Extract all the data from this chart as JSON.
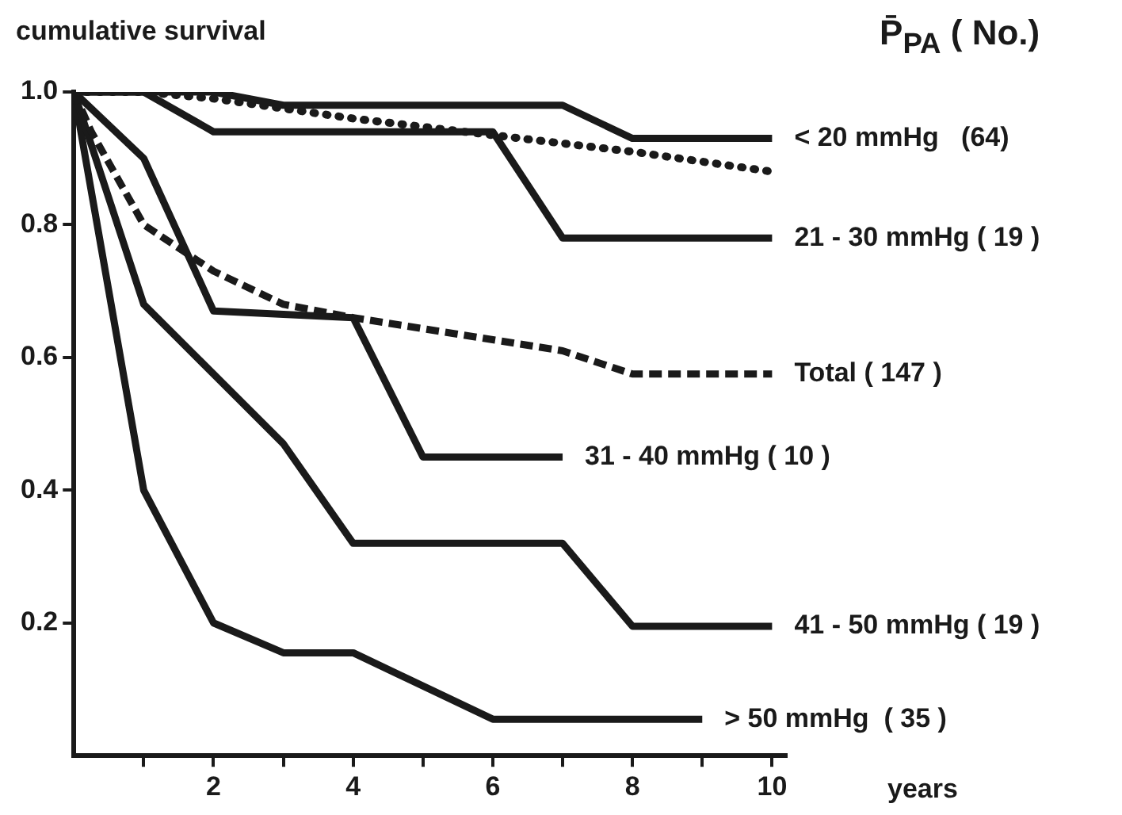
{
  "chart_data": {
    "type": "line",
    "ylabel": "cumulative survival",
    "xlabel": "years",
    "legend_title": "P̄$_{PA}$  ( No.)",
    "xlim": [
      0,
      10.2
    ],
    "ylim": [
      0,
      1.0
    ],
    "xticks": [
      {
        "value": 1,
        "label": null
      },
      2,
      {
        "value": 3,
        "label": null
      },
      4,
      {
        "value": 5,
        "label": null
      },
      6,
      {
        "value": 7,
        "label": null
      },
      8,
      {
        "value": 9,
        "label": null
      },
      10
    ],
    "yticks": [
      {
        "value": 0.2,
        "label": "0.2"
      },
      {
        "value": 0.4,
        "label": "0.4"
      },
      {
        "value": 0.6,
        "label": "0.6"
      },
      {
        "value": 0.8,
        "label": "0.8"
      },
      {
        "value": 1,
        "label": "1.0"
      }
    ],
    "grid": false,
    "legend": false,
    "marker": "none",
    "line_style": "solid",
    "series": [
      {
        "name": "< 20 mmHg   (64)",
        "color": "#1a1a1a",
        "x": [
          0,
          2,
          3,
          7,
          8,
          10
        ],
        "values": [
          1,
          1,
          0.98,
          0.98,
          0.93,
          0.93
        ]
      },
      {
        "color": "#1a1a1a",
        "line_style": "dotted",
        "x": [
          0,
          1,
          2,
          3,
          4,
          6,
          8,
          10
        ],
        "values": [
          1,
          1,
          0.99,
          0.975,
          0.96,
          0.935,
          0.91,
          0.88
        ]
      },
      {
        "name": "21 - 30 mmHg ( 19 )",
        "color": "#1a1a1a",
        "x": [
          0,
          1,
          2,
          6,
          7,
          10
        ],
        "values": [
          1,
          1,
          0.94,
          0.94,
          0.78,
          0.78
        ]
      },
      {
        "name": "Total ( 147 )",
        "color": "#1a1a1a",
        "line_style": "dashed",
        "x": [
          0,
          0.25,
          1,
          2,
          3,
          4,
          7,
          8,
          10
        ],
        "values": [
          1,
          0.94,
          0.8,
          0.73,
          0.68,
          0.66,
          0.61,
          0.575,
          0.575
        ]
      },
      {
        "name": "31 - 40 mmHg ( 10 )",
        "color": "#1a1a1a",
        "x": [
          0,
          1,
          2,
          4,
          5,
          7
        ],
        "values": [
          1,
          0.9,
          0.67,
          0.66,
          0.45,
          0.45
        ]
      },
      {
        "name": "41 - 50 mmHg ( 19 )",
        "color": "#1a1a1a",
        "x": [
          0,
          1,
          3,
          4,
          7,
          8,
          10
        ],
        "values": [
          1,
          0.68,
          0.47,
          0.32,
          0.32,
          0.195,
          0.195
        ]
      },
      {
        "name": "> 50 mmHg  ( 35 )",
        "color": "#1a1a1a",
        "x": [
          0,
          1,
          2,
          3,
          4,
          6,
          9
        ],
        "values": [
          1,
          0.4,
          0.2,
          0.155,
          0.155,
          0.055,
          0.055
        ]
      }
    ]
  }
}
